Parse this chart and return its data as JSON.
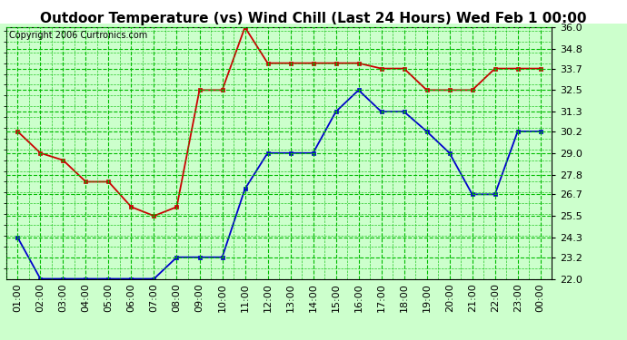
{
  "title": "Outdoor Temperature (vs) Wind Chill (Last 24 Hours) Wed Feb 1 00:00",
  "copyright": "Copyright 2006 Curtronics.com",
  "x_labels": [
    "01:00",
    "02:00",
    "03:00",
    "04:00",
    "05:00",
    "06:00",
    "07:00",
    "08:00",
    "09:00",
    "10:00",
    "11:00",
    "12:00",
    "13:00",
    "14:00",
    "15:00",
    "16:00",
    "17:00",
    "18:00",
    "19:00",
    "20:00",
    "21:00",
    "22:00",
    "23:00",
    "00:00"
  ],
  "temp_red": [
    30.2,
    29.0,
    28.6,
    27.4,
    27.4,
    26.0,
    25.5,
    26.0,
    32.5,
    32.5,
    36.0,
    34.0,
    34.0,
    34.0,
    34.0,
    34.0,
    33.7,
    33.7,
    32.5,
    32.5,
    32.5,
    33.7,
    33.7,
    33.7
  ],
  "temp_blue": [
    24.3,
    22.0,
    22.0,
    22.0,
    22.0,
    22.0,
    22.0,
    23.2,
    23.2,
    23.2,
    27.0,
    29.0,
    29.0,
    29.0,
    31.3,
    32.5,
    31.3,
    31.3,
    30.2,
    29.0,
    26.7,
    26.7,
    30.2,
    30.2
  ],
  "ylim": [
    22.0,
    36.0
  ],
  "yticks": [
    22.0,
    23.2,
    24.3,
    25.5,
    26.7,
    27.8,
    29.0,
    30.2,
    31.3,
    32.5,
    33.7,
    34.8,
    36.0
  ],
  "outer_bg": "#ccffcc",
  "plot_bg": "#ccffcc",
  "grid_color_major": "#00bb00",
  "grid_color_minor": "#00bb00",
  "red_color": "#cc0000",
  "blue_color": "#0000cc",
  "title_fontsize": 11,
  "copyright_fontsize": 7,
  "tick_fontsize": 8,
  "title_bg": "#ffffff"
}
